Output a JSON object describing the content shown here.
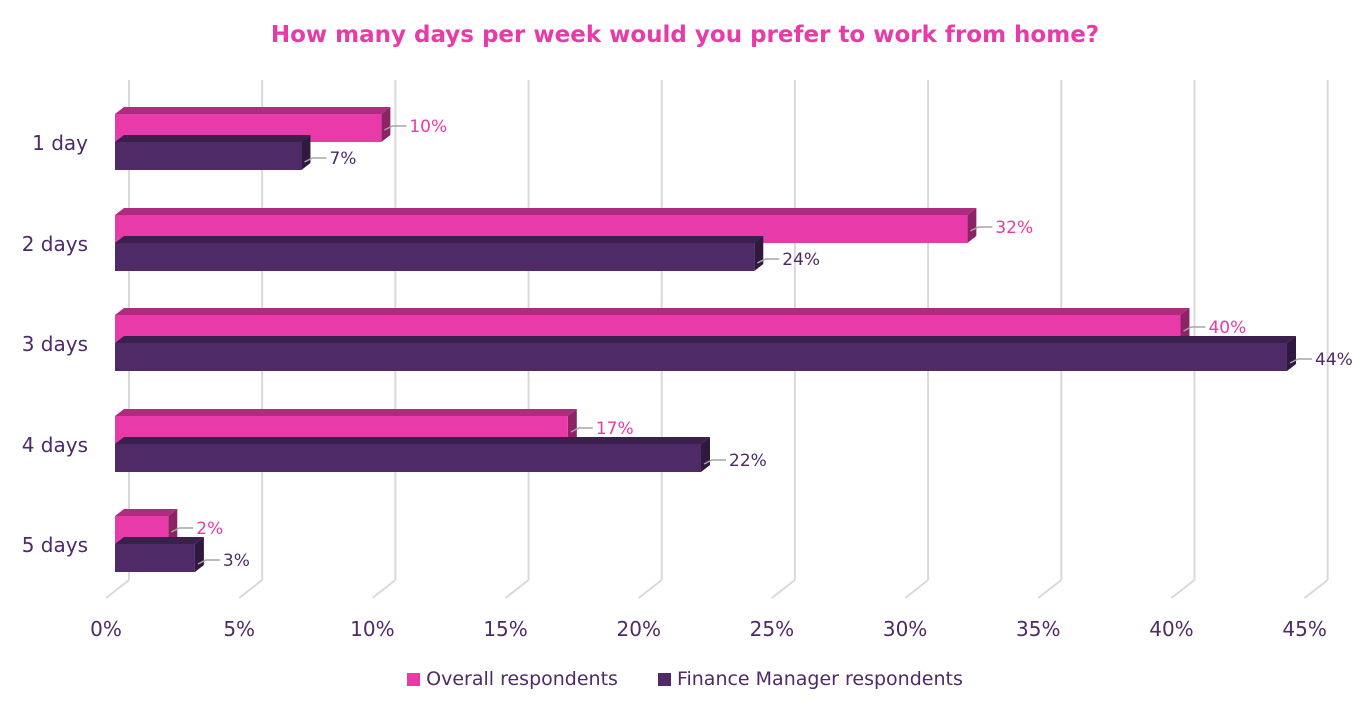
{
  "chart_data": {
    "type": "bar",
    "orientation": "horizontal",
    "title": "How many days per week would you prefer to work from home?",
    "categories": [
      "1 day",
      "2 days",
      "3 days",
      "4 days",
      "5 days"
    ],
    "series": [
      {
        "name": "Overall respondents",
        "values": [
          10,
          32,
          40,
          17,
          2
        ],
        "labels": [
          "10%",
          "32%",
          "40%",
          "17%",
          "2%"
        ],
        "color": "#e83aa8"
      },
      {
        "name": "Finance Manager respondents",
        "values": [
          7,
          24,
          44,
          22,
          3
        ],
        "labels": [
          "7%",
          "24%",
          "44%",
          "22%",
          "3%"
        ],
        "color": "#4e2a67"
      }
    ],
    "xlim": [
      0,
      45
    ],
    "xticks": [
      "0%",
      "5%",
      "10%",
      "15%",
      "20%",
      "25%",
      "30%",
      "35%",
      "40%",
      "45%"
    ],
    "grid": true,
    "legend_position": "bottom",
    "colors": {
      "title": "#e83aa8",
      "axis_text": "#4e2a67",
      "grid": "#d9d9d9",
      "leader": "#a6a6a6"
    }
  }
}
